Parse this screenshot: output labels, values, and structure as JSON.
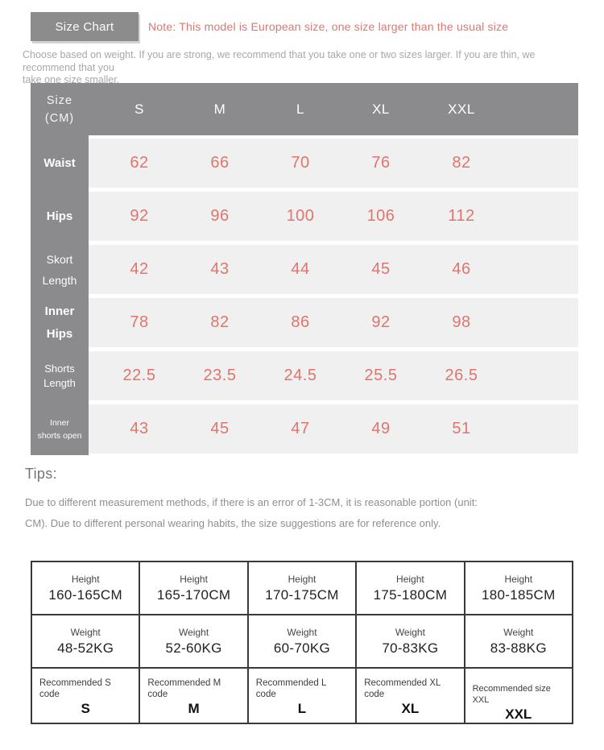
{
  "header": {
    "button_label": "Size Chart",
    "note": "Note: This model is European size, one size larger than the usual size",
    "intro": "Choose based on weight. If you are strong, we recommend that you take one or two sizes larger. If you are thin, we recommend that you\ntake one size smaller."
  },
  "size_table": {
    "corner_label": "Size\n(CM)",
    "columns": [
      "S",
      "M",
      "L",
      "XL",
      "XXL"
    ],
    "rows": [
      {
        "label": "Waist",
        "values": [
          "62",
          "66",
          "70",
          "76",
          "82"
        ]
      },
      {
        "label": "Hips",
        "values": [
          "92",
          "96",
          "100",
          "106",
          "112"
        ]
      },
      {
        "label": "Skort\nLength",
        "values": [
          "42",
          "43",
          "44",
          "45",
          "46"
        ]
      },
      {
        "label": "Inner\nHips",
        "values": [
          "78",
          "82",
          "86",
          "92",
          "98"
        ]
      },
      {
        "label": "Shorts\nLength",
        "values": [
          "22.5",
          "23.5",
          "24.5",
          "25.5",
          "26.5"
        ]
      },
      {
        "label": "Inner\nshorts open",
        "values": [
          "43",
          "45",
          "47",
          "49",
          "51"
        ]
      }
    ]
  },
  "tips": {
    "heading": "Tips:",
    "body": "Due to different measurement methods, if there is an error of 1-3CM, it is reasonable portion (unit:\nCM). Due to different personal wearing habits, the size suggestions are for reference only."
  },
  "recommendation_table": {
    "row_labels": {
      "height": "Height",
      "weight": "Weight"
    },
    "columns": [
      {
        "height": "160-165CM",
        "weight": "48-52KG",
        "rec_label": "Recommended S\ncode",
        "size": "S"
      },
      {
        "height": "165-170CM",
        "weight": "52-60KG",
        "rec_label": "Recommended M\ncode",
        "size": "M"
      },
      {
        "height": "170-175CM",
        "weight": "60-70KG",
        "rec_label": "Recommended L\ncode",
        "size": "L"
      },
      {
        "height": "175-180CM",
        "weight": "70-83KG",
        "rec_label": "Recommended XL\ncode",
        "size": "XL"
      },
      {
        "height": "180-185CM",
        "weight": "83-88KG",
        "rec_label": "Recommended size XXL",
        "size": "XXL"
      }
    ]
  },
  "colors": {
    "button_gray": "#8c8c8c",
    "table_header_gray": "#8b8b8d",
    "row_stripe_gray": "#f1f0f1",
    "value_red": "#e0756c",
    "note_red": "#df766f",
    "rec_table_border": "#3a3a3a"
  }
}
